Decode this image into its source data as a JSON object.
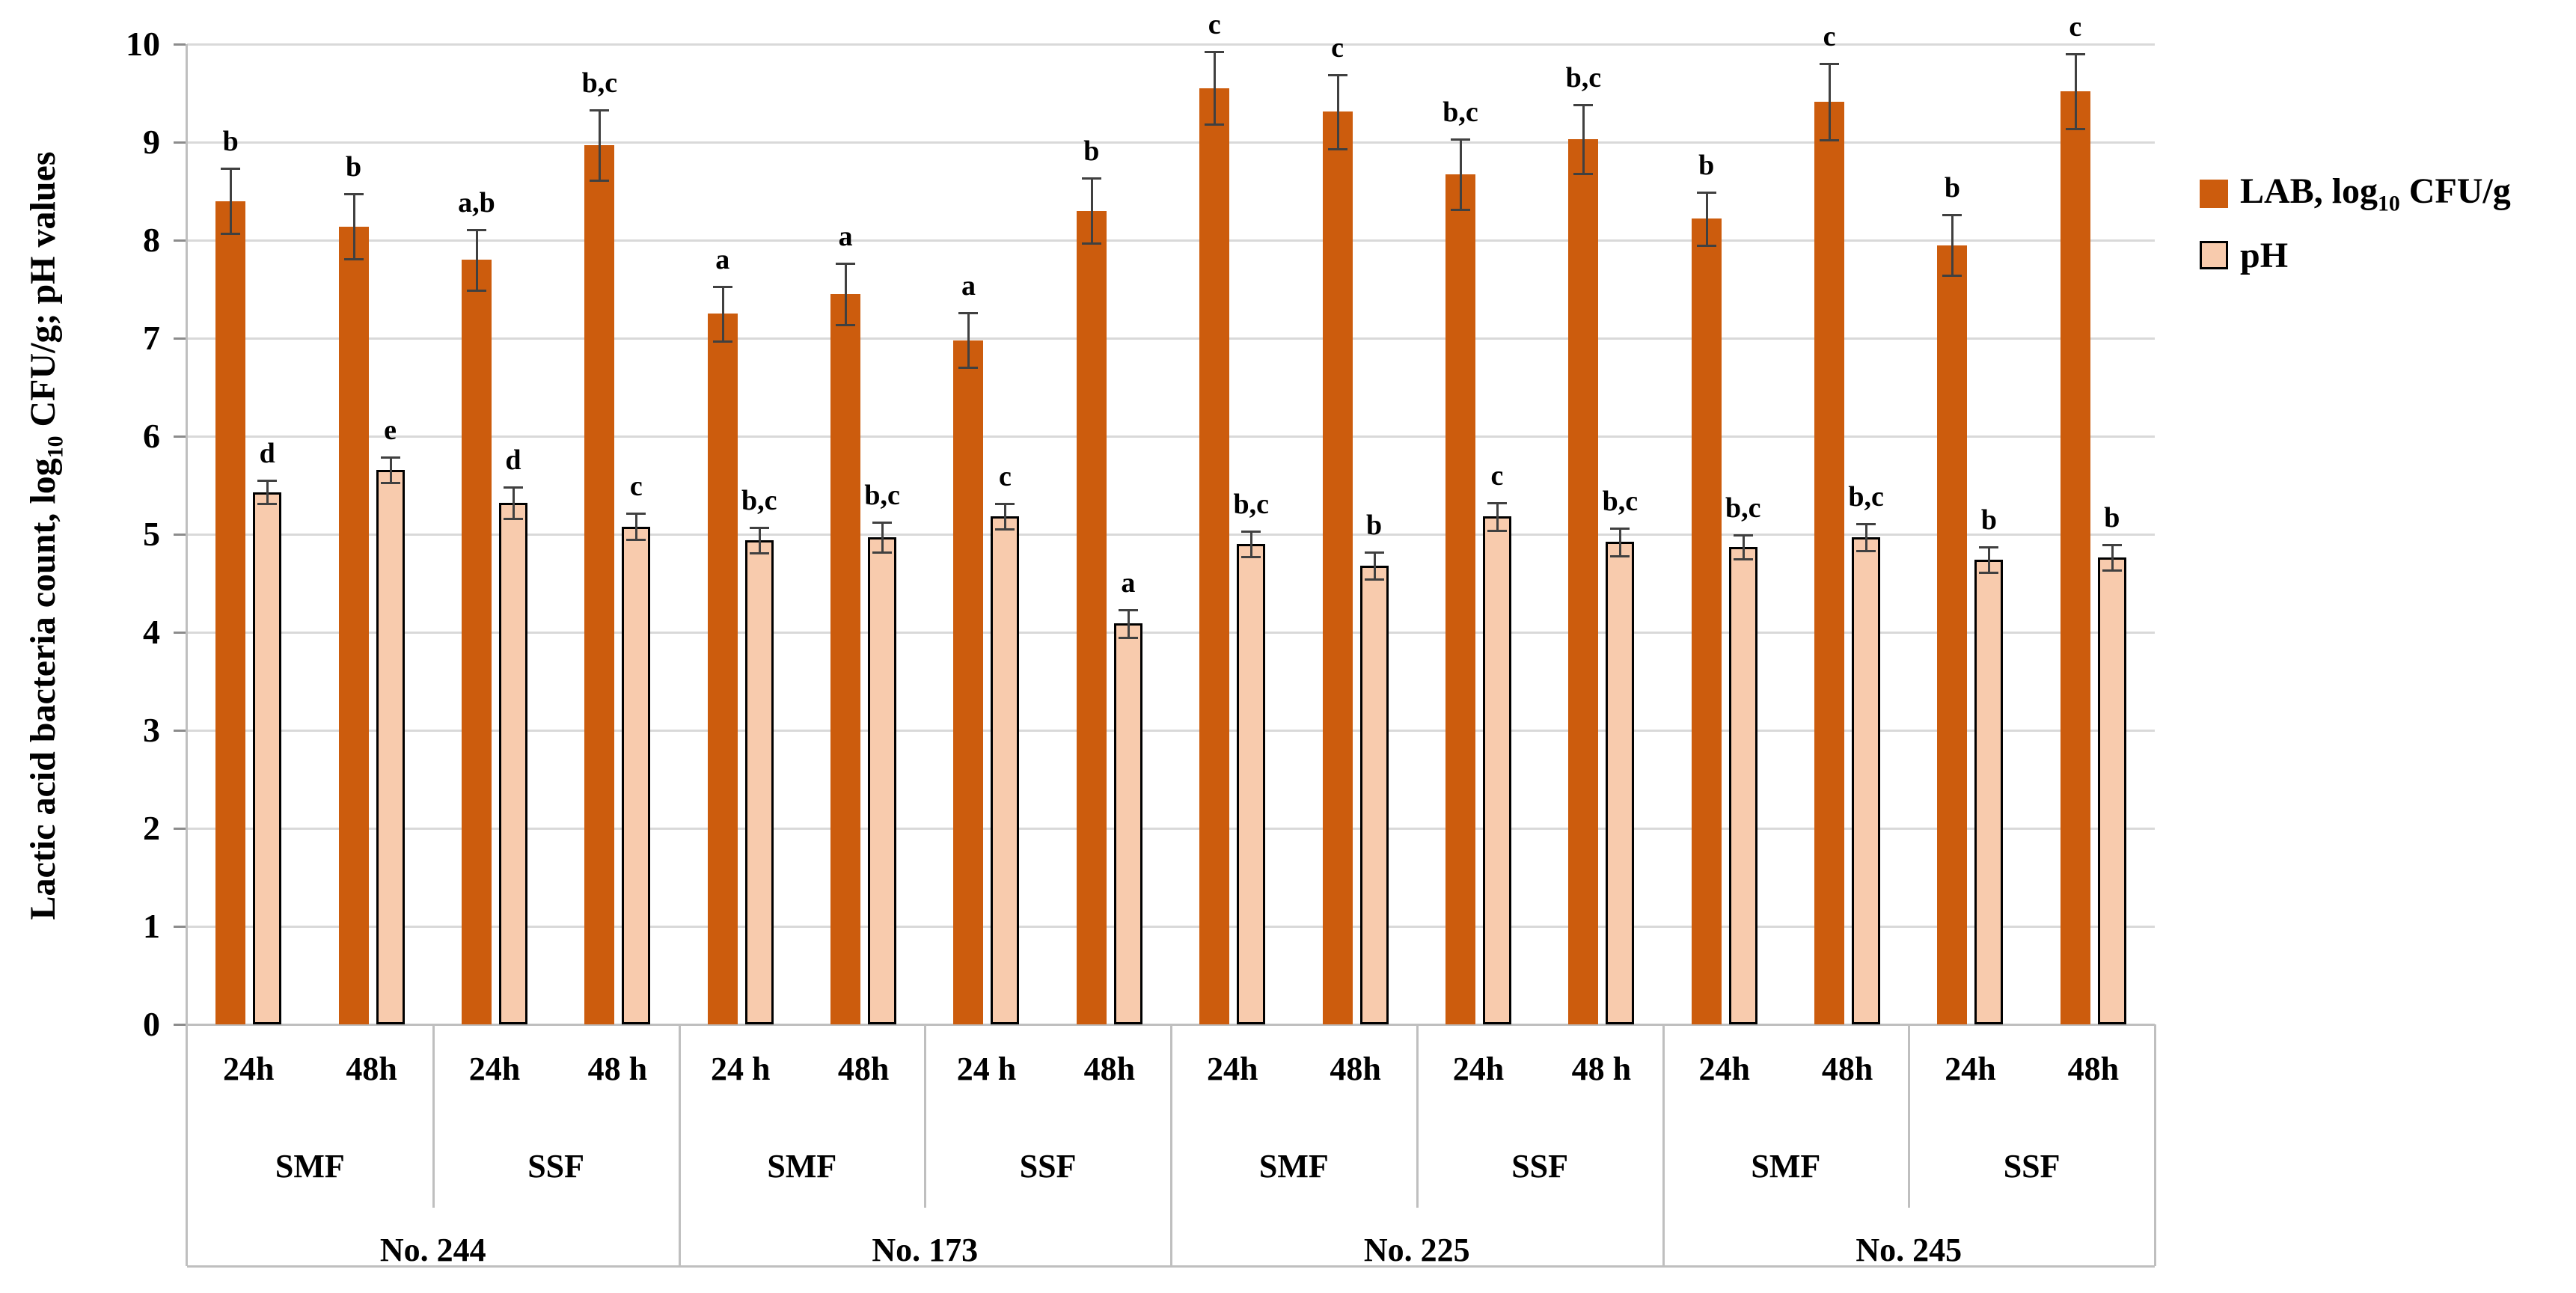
{
  "chart_data": {
    "type": "bar",
    "title": "",
    "ylabel_parts": {
      "prefix": "Lactic acid bacteria count, log",
      "sub": "10",
      "suffix": " CFU/g; pH values"
    },
    "ylim": [
      0,
      10
    ],
    "yticks": [
      "0",
      "1",
      "2",
      "3",
      "4",
      "5",
      "6",
      "7",
      "8",
      "9",
      "10"
    ],
    "grid": true,
    "legend_position": "right",
    "colors": {
      "lab": "#CC5C0D",
      "ph": "#F8CBAD",
      "error": "#404040",
      "grid": "#D9D9D9",
      "separator": "#BFBFBF"
    },
    "legend": {
      "lab": {
        "prefix": "LAB, log",
        "sub": "10",
        "suffix": " CFU/g"
      },
      "ph": {
        "label": "pH"
      }
    },
    "series_names": [
      "LAB, log10 CFU/g",
      "pH"
    ],
    "groups": [
      {
        "label": "No. 244",
        "subgroups": [
          {
            "label": "SMF",
            "points": [
              {
                "time": "24h",
                "lab": {
                  "value": 8.4,
                  "err": 0.33,
                  "letter": "b"
                },
                "ph": {
                  "value": 5.43,
                  "err": 0.12,
                  "letter": "d"
                }
              },
              {
                "time": "48h",
                "lab": {
                  "value": 8.14,
                  "err": 0.33,
                  "letter": "b"
                },
                "ph": {
                  "value": 5.66,
                  "err": 0.13,
                  "letter": "e"
                }
              }
            ]
          },
          {
            "label": "SSF",
            "points": [
              {
                "time": "24h",
                "lab": {
                  "value": 7.8,
                  "err": 0.31,
                  "letter": "a,b"
                },
                "ph": {
                  "value": 5.32,
                  "err": 0.16,
                  "letter": "d"
                }
              },
              {
                "time": "48 h",
                "lab": {
                  "value": 8.97,
                  "err": 0.36,
                  "letter": "b,c"
                },
                "ph": {
                  "value": 5.08,
                  "err": 0.13,
                  "letter": "c"
                }
              }
            ]
          }
        ]
      },
      {
        "label": "No. 173",
        "subgroups": [
          {
            "label": "SMF",
            "points": [
              {
                "time": "24 h",
                "lab": {
                  "value": 7.25,
                  "err": 0.28,
                  "letter": "a"
                },
                "ph": {
                  "value": 4.94,
                  "err": 0.13,
                  "letter": "b,c"
                }
              },
              {
                "time": "48h",
                "lab": {
                  "value": 7.45,
                  "err": 0.31,
                  "letter": "a"
                },
                "ph": {
                  "value": 4.97,
                  "err": 0.15,
                  "letter": "b,c"
                }
              }
            ]
          },
          {
            "label": "SSF",
            "points": [
              {
                "time": "24 h",
                "lab": {
                  "value": 6.98,
                  "err": 0.28,
                  "letter": "a"
                },
                "ph": {
                  "value": 5.18,
                  "err": 0.13,
                  "letter": "c"
                }
              },
              {
                "time": "48h",
                "lab": {
                  "value": 8.3,
                  "err": 0.33,
                  "letter": "b"
                },
                "ph": {
                  "value": 4.09,
                  "err": 0.14,
                  "letter": "a"
                }
              }
            ]
          }
        ]
      },
      {
        "label": "No. 225",
        "subgroups": [
          {
            "label": "SMF",
            "points": [
              {
                "time": "24h",
                "lab": {
                  "value": 9.55,
                  "err": 0.37,
                  "letter": "c"
                },
                "ph": {
                  "value": 4.9,
                  "err": 0.13,
                  "letter": "b,c"
                }
              },
              {
                "time": "48h",
                "lab": {
                  "value": 9.31,
                  "err": 0.38,
                  "letter": "c"
                },
                "ph": {
                  "value": 4.68,
                  "err": 0.14,
                  "letter": "b"
                }
              }
            ]
          },
          {
            "label": "SSF",
            "points": [
              {
                "time": "24h",
                "lab": {
                  "value": 8.67,
                  "err": 0.36,
                  "letter": "b,c"
                },
                "ph": {
                  "value": 5.18,
                  "err": 0.14,
                  "letter": "c"
                }
              },
              {
                "time": "48 h",
                "lab": {
                  "value": 9.03,
                  "err": 0.35,
                  "letter": "b,c"
                },
                "ph": {
                  "value": 4.92,
                  "err": 0.14,
                  "letter": "b,c"
                }
              }
            ]
          }
        ]
      },
      {
        "label": "No. 245",
        "subgroups": [
          {
            "label": "SMF",
            "points": [
              {
                "time": "24h",
                "lab": {
                  "value": 8.22,
                  "err": 0.27,
                  "letter": "b"
                },
                "ph": {
                  "value": 4.87,
                  "err": 0.12,
                  "letter": "b,c"
                }
              },
              {
                "time": "48h",
                "lab": {
                  "value": 9.41,
                  "err": 0.39,
                  "letter": "c"
                },
                "ph": {
                  "value": 4.97,
                  "err": 0.14,
                  "letter": "b,c"
                }
              }
            ]
          },
          {
            "label": "SSF",
            "points": [
              {
                "time": "24h",
                "lab": {
                  "value": 7.95,
                  "err": 0.31,
                  "letter": "b"
                },
                "ph": {
                  "value": 4.74,
                  "err": 0.13,
                  "letter": "b"
                }
              },
              {
                "time": "48h",
                "lab": {
                  "value": 9.52,
                  "err": 0.38,
                  "letter": "c"
                },
                "ph": {
                  "value": 4.76,
                  "err": 0.13,
                  "letter": "b"
                }
              }
            ]
          }
        ]
      }
    ]
  }
}
